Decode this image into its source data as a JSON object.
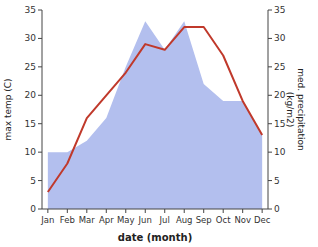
{
  "chart_data": {
    "type": "line",
    "xlabel": "date (month)",
    "ylabel": "max temp (C)",
    "y2label": "med. precipitation\n(kg/m2)",
    "categories": [
      "Jan",
      "Feb",
      "Mar",
      "Apr",
      "May",
      "Jun",
      "Jul",
      "Aug",
      "Sep",
      "Oct",
      "Nov",
      "Dec"
    ],
    "series": [
      {
        "type": "area",
        "axis": "y2",
        "color": "#b3bfee",
        "values": [
          10,
          10,
          12,
          16,
          25,
          33,
          28,
          33,
          22,
          19,
          19,
          13
        ]
      },
      {
        "type": "line",
        "color": "#c0392b",
        "values": [
          3,
          8,
          16,
          20,
          24,
          29,
          28,
          32,
          32,
          27,
          19,
          13
        ]
      }
    ],
    "ylim": [
      0,
      35
    ],
    "yticks": [
      0,
      5,
      10,
      15,
      20,
      25,
      30,
      35
    ],
    "y2lim": [
      0,
      35
    ],
    "y2ticks": [
      0,
      5,
      10,
      15,
      20,
      25,
      30,
      35
    ],
    "grid": false
  }
}
